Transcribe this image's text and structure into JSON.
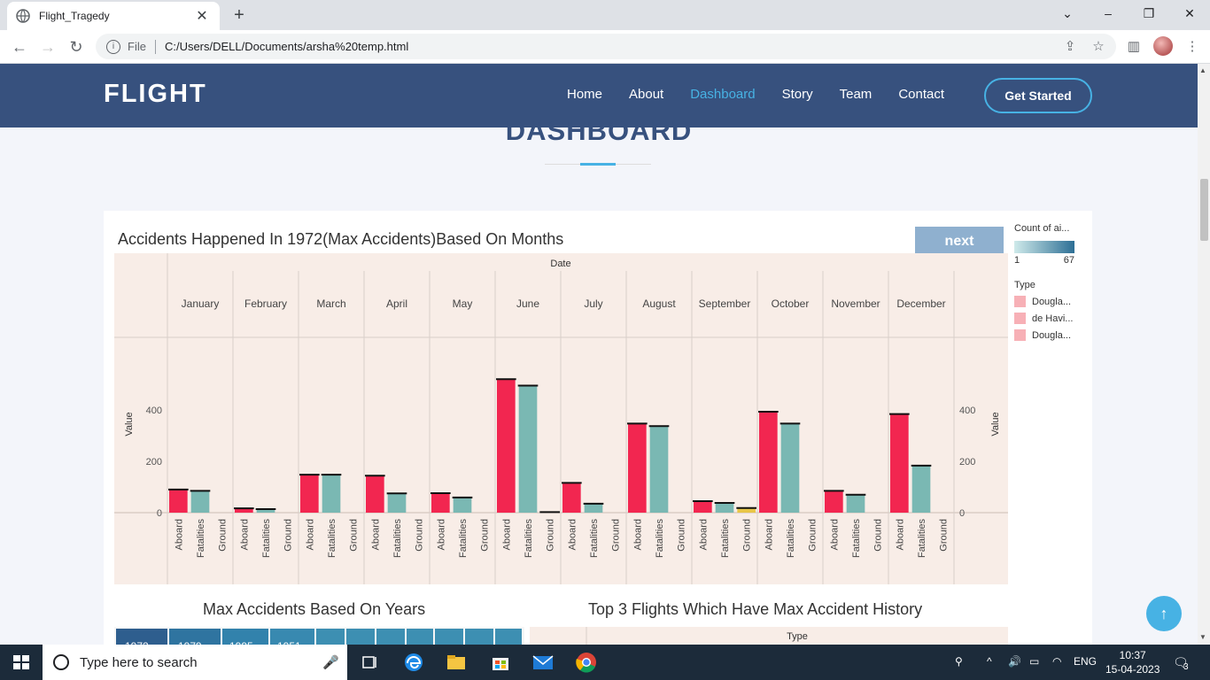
{
  "browser": {
    "tab_title": "Flight_Tragedy",
    "file_label": "File",
    "url": "C:/Users/DELL/Documents/arsha%20temp.html"
  },
  "header": {
    "logo": "FLIGHT",
    "nav": [
      "Home",
      "About",
      "Dashboard",
      "Story",
      "Team",
      "Contact"
    ],
    "active_nav": "Dashboard",
    "cta": "Get Started"
  },
  "section": {
    "title": "DASHBOARD"
  },
  "card": {
    "chart_title": "Accidents Happened In 1972(Max Accidents)Based On Months",
    "next_label": "next",
    "legend": {
      "count_title": "Count of ai...",
      "count_min": "1",
      "count_max": "67",
      "type_title": "Type",
      "types": [
        "Dougla...",
        "de Havi...",
        "Dougla..."
      ]
    }
  },
  "chart_data": [
    {
      "type": "bar",
      "title": "Accidents Happened In 1972(Max Accidents)Based On Months",
      "column_header": "Date",
      "ylabel": "Value",
      "ylim": [
        0,
        520
      ],
      "yticks": [
        0,
        200,
        400
      ],
      "categories": [
        "January",
        "February",
        "March",
        "April",
        "May",
        "June",
        "July",
        "August",
        "September",
        "October",
        "November",
        "December"
      ],
      "subcategories": [
        "Aboard",
        "Fatalities",
        "Ground"
      ],
      "series": [
        {
          "name": "Aboard",
          "color": "#f22650",
          "values": [
            90,
            17,
            148,
            144,
            76,
            520,
            116,
            347,
            45,
            393,
            85,
            384
          ]
        },
        {
          "name": "Fatalities",
          "color": "#7ab8b3",
          "values": [
            85,
            14,
            148,
            75,
            59,
            495,
            35,
            337,
            38,
            347,
            70,
            183
          ]
        },
        {
          "name": "Ground",
          "color": "#e8c547",
          "values": [
            0,
            0,
            0,
            0,
            0,
            2,
            0,
            0,
            18,
            0,
            0,
            0
          ]
        }
      ]
    }
  ],
  "lower": {
    "left_title": "Max Accidents Based On Years",
    "left_years": [
      "1972",
      "1979",
      "1995",
      "1951"
    ],
    "right_title": "Top 3 Flights Which Have Max Accident History",
    "right_header": "Type"
  },
  "taskbar": {
    "search_placeholder": "Type here to search",
    "lang": "ENG",
    "time": "10:37",
    "date": "15-04-2023",
    "notif_count": "3"
  }
}
